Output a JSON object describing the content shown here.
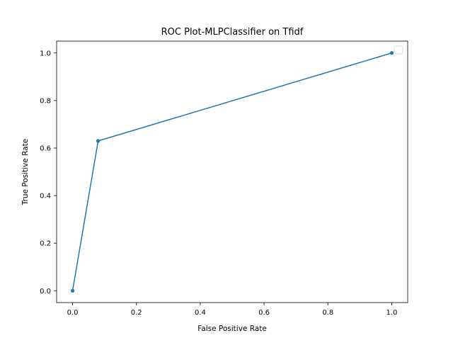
{
  "chart_data": {
    "type": "line",
    "title": "ROC Plot-MLPClassifier on Tfidf",
    "xlabel": "False Positive Rate",
    "ylabel": "True Positive Rate",
    "xlim": [
      -0.05,
      1.05
    ],
    "ylim": [
      -0.05,
      1.05
    ],
    "xticks": [
      0.0,
      0.2,
      0.4,
      0.6,
      0.8,
      1.0
    ],
    "xtick_labels": [
      "0.0",
      "0.2",
      "0.4",
      "0.6",
      "0.8",
      "1.0"
    ],
    "yticks": [
      0.0,
      0.2,
      0.4,
      0.6,
      0.8,
      1.0
    ],
    "ytick_labels": [
      "0.0",
      "0.2",
      "0.4",
      "0.6",
      "0.8",
      "1.0"
    ],
    "grid": false,
    "legend": "top-right, empty",
    "series": [
      {
        "color": "#1f77b4",
        "marker": "circle",
        "x": [
          0.0,
          0.08,
          1.0
        ],
        "y": [
          0.0,
          0.63,
          1.0
        ]
      }
    ]
  }
}
